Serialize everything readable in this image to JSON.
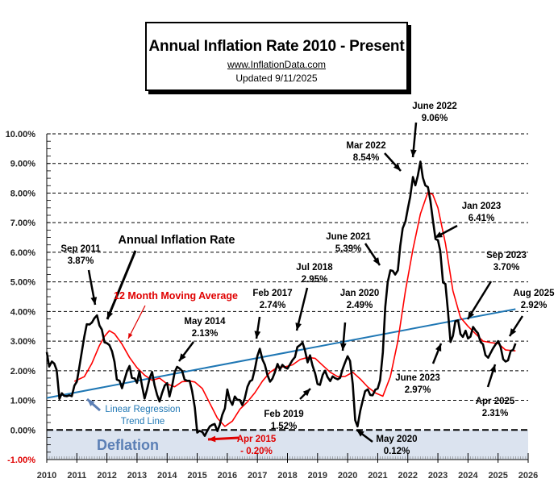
{
  "title_box": {
    "title": "Annual  Inflation Rate 2010 - Present",
    "website": "www.InflationData.com",
    "updated": "Updated   9/11/2025"
  },
  "chart_data": {
    "type": "line",
    "title": "Annual Inflation Rate 2010 - Present",
    "xlabel": "",
    "ylabel": "",
    "xlim": [
      2010,
      2026
    ],
    "ylim": [
      -1,
      10
    ],
    "grid": true,
    "x_ticks": [
      "2010",
      "2011",
      "2012",
      "2013",
      "2014",
      "2015",
      "2016",
      "2017",
      "2018",
      "2019",
      "2020",
      "2021",
      "2022",
      "2023",
      "2024",
      "2025",
      "2026"
    ],
    "y_ticks": [
      "10.00%",
      "9.00%",
      "8.00%",
      "7.00%",
      "6.00%",
      "5.00%",
      "4.00%",
      "3.00%",
      "2.00%",
      "1.00%",
      "0.00%",
      "-1.00%"
    ],
    "y_tick_values": [
      10,
      9,
      8,
      7,
      6,
      5,
      4,
      3,
      2,
      1,
      0,
      -1
    ],
    "deflation_label": "Deflation",
    "series": [
      {
        "name": "Annual Inflation Rate",
        "color": "#000000",
        "points": [
          [
            2010.0,
            2.63
          ],
          [
            2010.08,
            2.14
          ],
          [
            2010.17,
            2.31
          ],
          [
            2010.25,
            2.24
          ],
          [
            2010.33,
            2.02
          ],
          [
            2010.42,
            1.05
          ],
          [
            2010.5,
            1.24
          ],
          [
            2010.58,
            1.15
          ],
          [
            2010.67,
            1.14
          ],
          [
            2010.75,
            1.17
          ],
          [
            2010.83,
            1.14
          ],
          [
            2010.92,
            1.5
          ],
          [
            2011.0,
            1.63
          ],
          [
            2011.08,
            2.11
          ],
          [
            2011.17,
            2.68
          ],
          [
            2011.25,
            3.16
          ],
          [
            2011.33,
            3.57
          ],
          [
            2011.42,
            3.56
          ],
          [
            2011.5,
            3.63
          ],
          [
            2011.58,
            3.77
          ],
          [
            2011.67,
            3.87
          ],
          [
            2011.75,
            3.53
          ],
          [
            2011.83,
            3.39
          ],
          [
            2011.92,
            2.96
          ],
          [
            2012.0,
            2.93
          ],
          [
            2012.08,
            2.87
          ],
          [
            2012.17,
            2.65
          ],
          [
            2012.25,
            2.3
          ],
          [
            2012.33,
            1.7
          ],
          [
            2012.42,
            1.66
          ],
          [
            2012.5,
            1.41
          ],
          [
            2012.58,
            1.69
          ],
          [
            2012.67,
            1.99
          ],
          [
            2012.75,
            2.16
          ],
          [
            2012.83,
            1.76
          ],
          [
            2012.92,
            1.74
          ],
          [
            2013.0,
            1.59
          ],
          [
            2013.08,
            1.98
          ],
          [
            2013.17,
            1.47
          ],
          [
            2013.25,
            1.06
          ],
          [
            2013.33,
            1.36
          ],
          [
            2013.42,
            1.75
          ],
          [
            2013.5,
            1.96
          ],
          [
            2013.58,
            1.52
          ],
          [
            2013.67,
            1.18
          ],
          [
            2013.75,
            0.96
          ],
          [
            2013.83,
            1.24
          ],
          [
            2013.92,
            1.5
          ],
          [
            2014.0,
            1.58
          ],
          [
            2014.08,
            1.13
          ],
          [
            2014.17,
            1.51
          ],
          [
            2014.25,
            1.95
          ],
          [
            2014.33,
            2.13
          ],
          [
            2014.42,
            2.07
          ],
          [
            2014.5,
            1.99
          ],
          [
            2014.58,
            1.7
          ],
          [
            2014.67,
            1.66
          ],
          [
            2014.75,
            1.66
          ],
          [
            2014.83,
            1.32
          ],
          [
            2014.92,
            0.76
          ],
          [
            2015.0,
            -0.09
          ],
          [
            2015.08,
            -0.03
          ],
          [
            2015.17,
            -0.07
          ],
          [
            2015.25,
            -0.2
          ],
          [
            2015.33,
            -0.04
          ],
          [
            2015.42,
            0.12
          ],
          [
            2015.5,
            0.17
          ],
          [
            2015.58,
            0.2
          ],
          [
            2015.67,
            -0.04
          ],
          [
            2015.75,
            0.17
          ],
          [
            2015.83,
            0.5
          ],
          [
            2015.92,
            0.73
          ],
          [
            2016.0,
            1.37
          ],
          [
            2016.08,
            1.02
          ],
          [
            2016.17,
            0.85
          ],
          [
            2016.25,
            1.13
          ],
          [
            2016.33,
            1.02
          ],
          [
            2016.42,
            1.01
          ],
          [
            2016.5,
            0.84
          ],
          [
            2016.58,
            1.06
          ],
          [
            2016.67,
            1.46
          ],
          [
            2016.75,
            1.64
          ],
          [
            2016.83,
            1.69
          ],
          [
            2016.92,
            2.07
          ],
          [
            2017.0,
            2.5
          ],
          [
            2017.08,
            2.74
          ],
          [
            2017.17,
            2.38
          ],
          [
            2017.25,
            2.2
          ],
          [
            2017.33,
            1.87
          ],
          [
            2017.42,
            1.63
          ],
          [
            2017.5,
            1.73
          ],
          [
            2017.58,
            1.94
          ],
          [
            2017.67,
            2.23
          ],
          [
            2017.75,
            2.04
          ],
          [
            2017.83,
            2.2
          ],
          [
            2017.92,
            2.11
          ],
          [
            2018.0,
            2.07
          ],
          [
            2018.08,
            2.21
          ],
          [
            2018.17,
            2.36
          ],
          [
            2018.25,
            2.46
          ],
          [
            2018.33,
            2.8
          ],
          [
            2018.42,
            2.87
          ],
          [
            2018.5,
            2.95
          ],
          [
            2018.58,
            2.7
          ],
          [
            2018.67,
            2.28
          ],
          [
            2018.75,
            2.52
          ],
          [
            2018.83,
            2.18
          ],
          [
            2018.92,
            1.91
          ],
          [
            2019.0,
            1.55
          ],
          [
            2019.08,
            1.52
          ],
          [
            2019.17,
            1.86
          ],
          [
            2019.25,
            2.0
          ],
          [
            2019.33,
            1.79
          ],
          [
            2019.42,
            1.65
          ],
          [
            2019.5,
            1.81
          ],
          [
            2019.58,
            1.75
          ],
          [
            2019.67,
            1.71
          ],
          [
            2019.75,
            1.76
          ],
          [
            2019.83,
            2.05
          ],
          [
            2019.92,
            2.29
          ],
          [
            2020.0,
            2.49
          ],
          [
            2020.08,
            2.33
          ],
          [
            2020.17,
            1.54
          ],
          [
            2020.25,
            0.33
          ],
          [
            2020.33,
            0.12
          ],
          [
            2020.42,
            0.65
          ],
          [
            2020.5,
            0.99
          ],
          [
            2020.58,
            1.31
          ],
          [
            2020.67,
            1.37
          ],
          [
            2020.75,
            1.18
          ],
          [
            2020.83,
            1.17
          ],
          [
            2020.92,
            1.36
          ],
          [
            2021.0,
            1.4
          ],
          [
            2021.08,
            1.68
          ],
          [
            2021.17,
            2.62
          ],
          [
            2021.25,
            4.16
          ],
          [
            2021.33,
            4.99
          ],
          [
            2021.42,
            5.39
          ],
          [
            2021.5,
            5.37
          ],
          [
            2021.58,
            5.25
          ],
          [
            2021.67,
            5.39
          ],
          [
            2021.75,
            6.22
          ],
          [
            2021.83,
            6.81
          ],
          [
            2021.92,
            7.04
          ],
          [
            2022.0,
            7.48
          ],
          [
            2022.08,
            7.87
          ],
          [
            2022.17,
            8.54
          ],
          [
            2022.25,
            8.26
          ],
          [
            2022.33,
            8.58
          ],
          [
            2022.42,
            9.06
          ],
          [
            2022.5,
            8.52
          ],
          [
            2022.58,
            8.26
          ],
          [
            2022.67,
            8.2
          ],
          [
            2022.75,
            7.75
          ],
          [
            2022.83,
            7.11
          ],
          [
            2022.92,
            6.45
          ],
          [
            2023.0,
            6.41
          ],
          [
            2023.08,
            6.04
          ],
          [
            2023.17,
            4.98
          ],
          [
            2023.25,
            4.93
          ],
          [
            2023.33,
            4.05
          ],
          [
            2023.42,
            2.97
          ],
          [
            2023.5,
            3.18
          ],
          [
            2023.58,
            3.67
          ],
          [
            2023.67,
            3.7
          ],
          [
            2023.75,
            3.24
          ],
          [
            2023.83,
            3.14
          ],
          [
            2023.92,
            3.35
          ],
          [
            2024.0,
            3.09
          ],
          [
            2024.08,
            3.15
          ],
          [
            2024.17,
            3.48
          ],
          [
            2024.25,
            3.36
          ],
          [
            2024.33,
            3.27
          ],
          [
            2024.42,
            2.97
          ],
          [
            2024.5,
            2.89
          ],
          [
            2024.58,
            2.53
          ],
          [
            2024.67,
            2.44
          ],
          [
            2024.75,
            2.6
          ],
          [
            2024.83,
            2.75
          ],
          [
            2024.92,
            2.89
          ],
          [
            2025.0,
            3.0
          ],
          [
            2025.08,
            2.82
          ],
          [
            2025.17,
            2.39
          ],
          [
            2025.25,
            2.31
          ],
          [
            2025.33,
            2.35
          ],
          [
            2025.42,
            2.67
          ],
          [
            2025.5,
            2.7
          ],
          [
            2025.58,
            2.92
          ]
        ]
      },
      {
        "name": "12 Month Moving Average",
        "color": "#ff0000",
        "points": [
          [
            2010.92,
            1.64
          ],
          [
            2011.25,
            1.8
          ],
          [
            2011.5,
            2.25
          ],
          [
            2011.75,
            2.85
          ],
          [
            2011.92,
            3.16
          ],
          [
            2012.08,
            3.35
          ],
          [
            2012.25,
            3.25
          ],
          [
            2012.5,
            2.9
          ],
          [
            2012.75,
            2.45
          ],
          [
            2013.0,
            2.1
          ],
          [
            2013.25,
            1.85
          ],
          [
            2013.5,
            1.68
          ],
          [
            2013.75,
            1.75
          ],
          [
            2014.0,
            1.55
          ],
          [
            2014.25,
            1.46
          ],
          [
            2014.5,
            1.63
          ],
          [
            2014.75,
            1.65
          ],
          [
            2014.92,
            1.62
          ],
          [
            2015.17,
            1.4
          ],
          [
            2015.42,
            0.9
          ],
          [
            2015.67,
            0.4
          ],
          [
            2015.92,
            0.12
          ],
          [
            2016.17,
            0.3
          ],
          [
            2016.42,
            0.7
          ],
          [
            2016.67,
            0.95
          ],
          [
            2016.92,
            1.26
          ],
          [
            2017.17,
            1.65
          ],
          [
            2017.42,
            1.95
          ],
          [
            2017.67,
            2.12
          ],
          [
            2017.92,
            2.13
          ],
          [
            2018.17,
            2.2
          ],
          [
            2018.42,
            2.38
          ],
          [
            2018.67,
            2.45
          ],
          [
            2018.92,
            2.42
          ],
          [
            2019.17,
            2.18
          ],
          [
            2019.42,
            1.95
          ],
          [
            2019.67,
            1.8
          ],
          [
            2019.92,
            1.81
          ],
          [
            2020.17,
            1.95
          ],
          [
            2020.42,
            1.72
          ],
          [
            2020.67,
            1.45
          ],
          [
            2020.92,
            1.25
          ],
          [
            2021.17,
            1.14
          ],
          [
            2021.42,
            1.8
          ],
          [
            2021.67,
            3.0
          ],
          [
            2021.92,
            4.7
          ],
          [
            2022.17,
            6.1
          ],
          [
            2022.42,
            7.3
          ],
          [
            2022.67,
            8.03
          ],
          [
            2022.83,
            7.95
          ],
          [
            2023.0,
            7.5
          ],
          [
            2023.25,
            6.3
          ],
          [
            2023.5,
            4.7
          ],
          [
            2023.75,
            3.8
          ],
          [
            2024.0,
            3.5
          ],
          [
            2024.25,
            3.25
          ],
          [
            2024.5,
            3.0
          ],
          [
            2024.75,
            2.95
          ],
          [
            2025.0,
            2.92
          ],
          [
            2025.25,
            2.7
          ],
          [
            2025.58,
            2.67
          ]
        ]
      },
      {
        "name": "Linear Regression Trend Line",
        "color": "#1f77b4",
        "points": [
          [
            2010.0,
            1.08
          ],
          [
            2025.58,
            4.08
          ]
        ]
      }
    ],
    "annotations": [
      {
        "label": "Sep 2011",
        "value": "3.87%",
        "x": 2011.67,
        "y": 3.87
      },
      {
        "label": "May 2014",
        "value": "2.13%",
        "x": 2014.33,
        "y": 2.13
      },
      {
        "label": "Apr 2015",
        "value": "- 0.20%",
        "x": 2015.25,
        "y": -0.2
      },
      {
        "label": "Feb 2017",
        "value": "2.74%",
        "x": 2017.08,
        "y": 2.74
      },
      {
        "label": "Jul 2018",
        "value": "2.95%",
        "x": 2018.5,
        "y": 2.95
      },
      {
        "label": "Feb 2019",
        "value": "1.52%",
        "x": 2019.08,
        "y": 1.52
      },
      {
        "label": "Jan 2020",
        "value": "2.49%",
        "x": 2020.0,
        "y": 2.49
      },
      {
        "label": "May 2020",
        "value": "0.12%",
        "x": 2020.33,
        "y": 0.12
      },
      {
        "label": "June 2021",
        "value": "5.39%",
        "x": 2021.42,
        "y": 5.39
      },
      {
        "label": "Mar 2022",
        "value": "8.54%",
        "x": 2022.17,
        "y": 8.54
      },
      {
        "label": "June 2022",
        "value": "9.06%",
        "x": 2022.42,
        "y": 9.06
      },
      {
        "label": "Jan 2023",
        "value": "6.41%",
        "x": 2023.0,
        "y": 6.41
      },
      {
        "label": "June 2023",
        "value": "2.97%",
        "x": 2023.42,
        "y": 2.97
      },
      {
        "label": "Sep 2023",
        "value": "3.70%",
        "x": 2023.67,
        "y": 3.7
      },
      {
        "label": "Apr 2025",
        "value": "2.31%",
        "x": 2025.25,
        "y": 2.31
      },
      {
        "label": "Aug 2025",
        "value": "2.92%",
        "x": 2025.58,
        "y": 2.92
      }
    ],
    "legend_labels": {
      "annual": "Annual Inflation Rate",
      "moving_avg": "12 Month Moving Average",
      "trend1": "Linear Regression",
      "trend2": "Trend Line"
    }
  }
}
